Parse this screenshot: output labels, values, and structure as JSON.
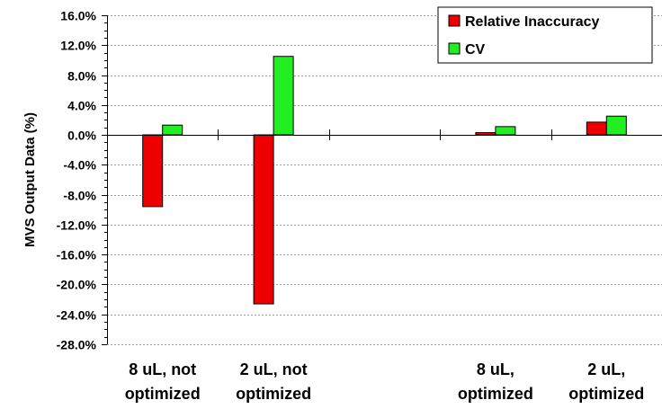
{
  "chart_data": {
    "type": "bar",
    "ylabel": "MVS Output Data (%)",
    "ylim": [
      -28,
      16
    ],
    "ytick_step": 4,
    "ytick_labels": [
      "16.0%",
      "12.0%",
      "8.0%",
      "4.0%",
      "0.0%",
      "-4.0%",
      "-8.0%",
      "-12.0%",
      "-16.0%",
      "-20.0%",
      "-24.0%",
      "-28.0%"
    ],
    "grid": true,
    "legend_position": "top-right",
    "categories": [
      [
        "8 uL, not",
        "optimized"
      ],
      [
        "2 uL, not",
        "optimized"
      ],
      [
        "",
        ""
      ],
      [
        "8 uL,",
        "optimized"
      ],
      [
        "2 uL,",
        "optimized"
      ]
    ],
    "series": [
      {
        "name": "Relative Inaccuracy",
        "color": "#ee0000",
        "values": [
          -9.6,
          -22.6,
          null,
          0.3,
          1.7
        ]
      },
      {
        "name": "CV",
        "color": "#22ee22",
        "values": [
          1.3,
          10.5,
          null,
          1.1,
          2.5
        ]
      }
    ]
  }
}
